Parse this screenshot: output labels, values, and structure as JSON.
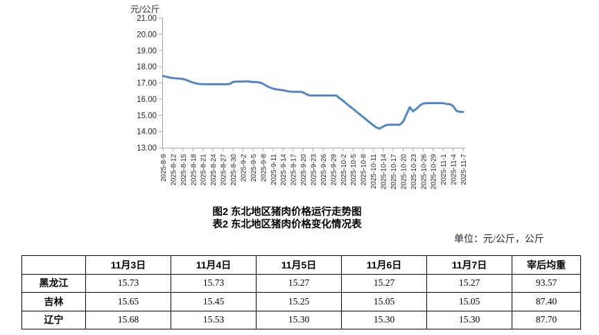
{
  "titles": {
    "figure": "图2  东北地区猪肉价格运行走势图",
    "table": "表2  东北地区猪肉价格变化情况表"
  },
  "unit_note": "单位：元/公斤，公斤",
  "colors": {
    "line": "#4f81bd",
    "axis": "#a6a6a6",
    "tick_text": "#262626"
  },
  "chart_data": {
    "type": "line",
    "title": "图2 东北地区猪肉价格运行走势图",
    "ylabel": "元/公斤",
    "xlabel": "",
    "ylim": [
      13,
      21
    ],
    "grid": false,
    "legend": "none",
    "line_color": "#4f81bd",
    "y_tick_labels": [
      "21.00",
      "20.00",
      "19.00",
      "18.00",
      "17.00",
      "16.00",
      "15.00",
      "14.00",
      "13.00"
    ],
    "x_tick_labels": [
      "2025-8-9",
      "2025-8-12",
      "2025-8-15",
      "2025-8-18",
      "2025-8-21",
      "2025-8-24",
      "2025-8-27",
      "2025-8-30",
      "2025-9-2",
      "2025-9-5",
      "2025-9-8",
      "2025-9-11",
      "2025-9-14",
      "2025-9-17",
      "2025-9-20",
      "2025-9-23",
      "2025-9-26",
      "2025-9-29",
      "2025-10-2",
      "2025-10-5",
      "2025-10-8",
      "2025-10-11",
      "2025-10-14",
      "2025-10-17",
      "2025-10-20",
      "2025-10-23",
      "2025-10-26",
      "2025-10-29",
      "2025-11-1",
      "2025-11-4",
      "2025-11-7"
    ],
    "x": [
      "2025-8-9",
      "2025-8-10",
      "2025-8-11",
      "2025-8-12",
      "2025-8-13",
      "2025-8-14",
      "2025-8-15",
      "2025-8-16",
      "2025-8-17",
      "2025-8-18",
      "2025-8-19",
      "2025-8-20",
      "2025-8-21",
      "2025-8-22",
      "2025-8-23",
      "2025-8-24",
      "2025-8-25",
      "2025-8-26",
      "2025-8-27",
      "2025-8-28",
      "2025-8-29",
      "2025-8-30",
      "2025-8-31",
      "2025-9-1",
      "2025-9-2",
      "2025-9-3",
      "2025-9-4",
      "2025-9-5",
      "2025-9-6",
      "2025-9-7",
      "2025-9-8",
      "2025-9-9",
      "2025-9-10",
      "2025-9-11",
      "2025-9-12",
      "2025-9-13",
      "2025-9-14",
      "2025-9-15",
      "2025-9-16",
      "2025-9-17",
      "2025-9-18",
      "2025-9-19",
      "2025-9-20",
      "2025-9-21",
      "2025-9-22",
      "2025-9-23",
      "2025-9-24",
      "2025-9-25",
      "2025-9-26",
      "2025-9-27",
      "2025-9-28",
      "2025-9-29",
      "2025-9-30",
      "2025-10-1",
      "2025-10-2",
      "2025-10-3",
      "2025-10-4",
      "2025-10-5",
      "2025-10-6",
      "2025-10-7",
      "2025-10-8",
      "2025-10-9",
      "2025-10-10",
      "2025-10-11",
      "2025-10-12",
      "2025-10-13",
      "2025-10-14",
      "2025-10-15",
      "2025-10-16",
      "2025-10-17",
      "2025-10-18",
      "2025-10-19",
      "2025-10-20",
      "2025-10-21",
      "2025-10-22",
      "2025-10-23",
      "2025-10-24",
      "2025-10-25",
      "2025-10-26",
      "2025-10-27",
      "2025-10-28",
      "2025-10-29",
      "2025-10-30",
      "2025-10-31",
      "2025-11-1",
      "2025-11-2",
      "2025-11-3",
      "2025-11-4",
      "2025-11-5",
      "2025-11-6",
      "2025-11-7"
    ],
    "series": [
      {
        "name": "东北地区猪肉价格",
        "values": [
          17.42,
          17.38,
          17.33,
          17.3,
          17.28,
          17.26,
          17.24,
          17.18,
          17.1,
          17.02,
          16.96,
          16.93,
          16.92,
          16.92,
          16.92,
          16.92,
          16.92,
          16.92,
          16.92,
          16.92,
          16.93,
          17.05,
          17.08,
          17.08,
          17.08,
          17.1,
          17.08,
          17.05,
          17.05,
          17.02,
          16.95,
          16.82,
          16.72,
          16.65,
          16.6,
          16.57,
          16.55,
          16.5,
          16.47,
          16.45,
          16.45,
          16.45,
          16.42,
          16.3,
          16.22,
          16.22,
          16.22,
          16.22,
          16.22,
          16.22,
          16.22,
          16.22,
          16.22,
          16.05,
          15.9,
          15.73,
          15.56,
          15.4,
          15.23,
          15.06,
          14.9,
          14.73,
          14.56,
          14.4,
          14.25,
          14.18,
          14.3,
          14.4,
          14.42,
          14.42,
          14.42,
          14.42,
          14.6,
          15.05,
          15.5,
          15.25,
          15.4,
          15.6,
          15.72,
          15.75,
          15.75,
          15.75,
          15.75,
          15.75,
          15.75,
          15.7,
          15.69,
          15.57,
          15.27,
          15.21,
          15.21
        ]
      }
    ]
  },
  "table": {
    "headers": [
      "",
      "11月3日",
      "11月4日",
      "11月5日",
      "11月6日",
      "11月7日",
      "宰后均重"
    ],
    "rows": [
      {
        "label": "黑龙江",
        "values": [
          "15.73",
          "15.73",
          "15.27",
          "15.27",
          "15.27",
          "93.57"
        ]
      },
      {
        "label": "吉林",
        "values": [
          "15.65",
          "15.45",
          "15.25",
          "15.05",
          "15.05",
          "87.40"
        ]
      },
      {
        "label": "辽宁",
        "values": [
          "15.68",
          "15.53",
          "15.30",
          "15.30",
          "15.30",
          "87.70"
        ]
      }
    ]
  }
}
